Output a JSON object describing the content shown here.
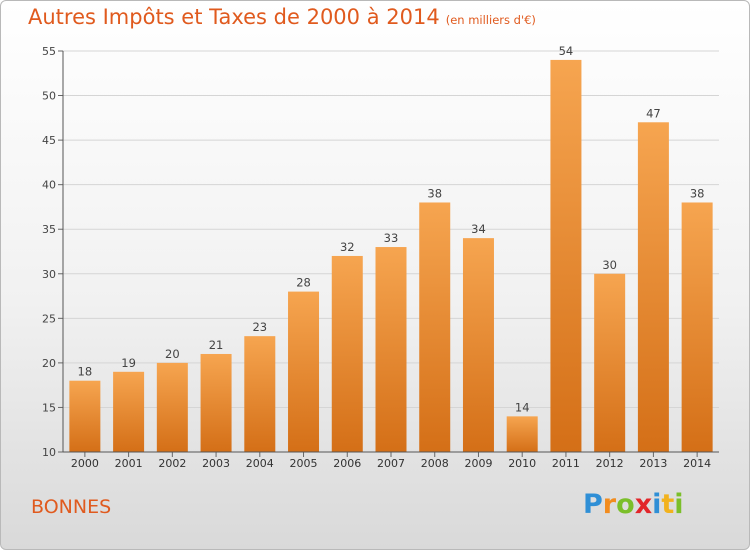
{
  "title": "Autres Impôts et Taxes de 2000 à 2014",
  "subtitle": "(en milliers d'€)",
  "place": "BONNES",
  "logo": {
    "text": "Proxiti",
    "letters": [
      {
        "ch": "P",
        "color": "#2f8fd6"
      },
      {
        "ch": "r",
        "color": "#f28c1e"
      },
      {
        "ch": "o",
        "color": "#7bbf2a"
      },
      {
        "ch": "x",
        "color": "#e2262a"
      },
      {
        "ch": "i",
        "color": "#2f8fd6"
      },
      {
        "ch": "t",
        "color": "#f2b21e"
      },
      {
        "ch": "i",
        "color": "#7bbf2a"
      }
    ]
  },
  "colors": {
    "title": "#e05a1e",
    "bar_top": "#f6a550",
    "bar_bottom": "#d46f17",
    "grid": "#d5d5d5"
  },
  "chart_data": {
    "type": "bar",
    "title": "Autres Impôts et Taxes de 2000 à 2014",
    "subtitle": "(en milliers d'€)",
    "categories": [
      "2000",
      "2001",
      "2002",
      "2003",
      "2004",
      "2005",
      "2006",
      "2007",
      "2008",
      "2009",
      "2010",
      "2011",
      "2012",
      "2013",
      "2014"
    ],
    "values": [
      18,
      19,
      20,
      21,
      23,
      28,
      32,
      33,
      38,
      34,
      14,
      54,
      30,
      47,
      38
    ],
    "ylim": [
      10,
      55
    ],
    "yticks": [
      10,
      15,
      20,
      25,
      30,
      35,
      40,
      45,
      50,
      55
    ],
    "grid": true,
    "data_labels": true
  }
}
